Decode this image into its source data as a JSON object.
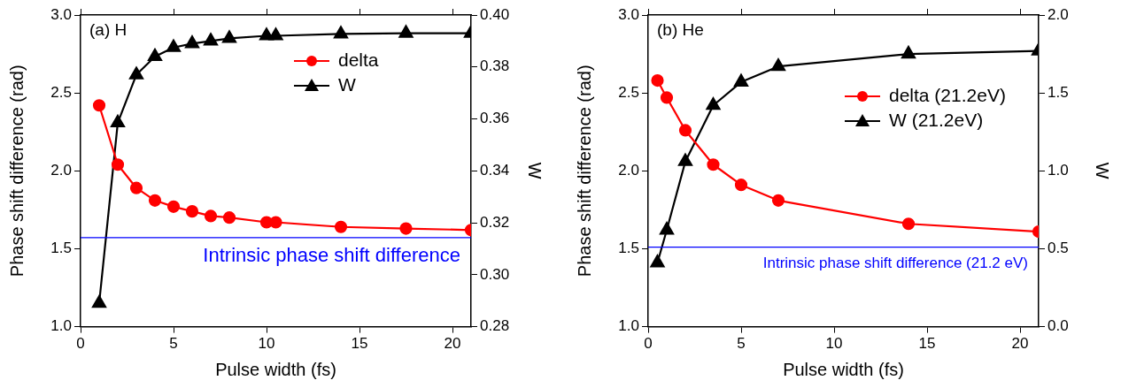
{
  "chart_data": [
    {
      "type": "line",
      "xlabel": "Pulse width (fs)",
      "ylabel": "Phase shift difference (rad)",
      "y2label": "W",
      "annotations": [
        "(a) H"
      ],
      "xlim": [
        0,
        21
      ],
      "xticks": [
        0,
        5,
        10,
        15,
        20
      ],
      "ylim": [
        1,
        3
      ],
      "yticks": [
        {
          "value": 1,
          "label": "1.0"
        },
        {
          "value": 1.5,
          "label": "1.5"
        },
        {
          "value": 2,
          "label": "2.0"
        },
        {
          "value": 2.5,
          "label": "2.5"
        },
        {
          "value": 3,
          "label": "3.0"
        }
      ],
      "y2lim": [
        0.28,
        0.4
      ],
      "y2ticks": [
        {
          "value": 0.28,
          "label": "0.28"
        },
        {
          "value": 0.3,
          "label": "0.30"
        },
        {
          "value": 0.32,
          "label": "0.32"
        },
        {
          "value": 0.34,
          "label": "0.34"
        },
        {
          "value": 0.36,
          "label": "0.36"
        },
        {
          "value": 0.38,
          "label": "0.38"
        },
        {
          "value": 0.4,
          "label": "0.40"
        }
      ],
      "legend": "top right",
      "grid": false,
      "ref_lines": [
        {
          "axis": "y",
          "value": 1.571,
          "label": "Intrinsic phase shift difference",
          "color": "#0000ff"
        }
      ],
      "series": [
        {
          "name": "delta",
          "color": "#ff0000",
          "marker": "circle",
          "x": [
            1,
            2,
            3,
            4,
            5,
            6,
            7,
            8,
            10,
            10.5,
            14,
            17.5,
            21
          ],
          "values": [
            2.42,
            2.04,
            1.89,
            1.81,
            1.77,
            1.74,
            1.71,
            1.7,
            1.67,
            1.67,
            1.64,
            1.63,
            1.62
          ]
        },
        {
          "name": "W",
          "color": "#000000",
          "marker": "triangle",
          "axis": "y2",
          "x": [
            1,
            2,
            3,
            4,
            5,
            6,
            7,
            8,
            10,
            10.5,
            14,
            17.5,
            21
          ],
          "values": [
            0.289,
            0.3585,
            0.377,
            0.384,
            0.3875,
            0.389,
            0.39,
            0.391,
            0.392,
            0.392,
            0.3927,
            0.393,
            0.393
          ]
        }
      ]
    },
    {
      "type": "line",
      "xlabel": "Pulse width (fs)",
      "ylabel": "Phase shift difference (rad)",
      "y2label": "W",
      "annotations": [
        "(b) He"
      ],
      "xlim": [
        0,
        21
      ],
      "xticks": [
        0,
        5,
        10,
        15,
        20
      ],
      "ylim": [
        1,
        3
      ],
      "yticks": [
        {
          "value": 1,
          "label": "1.0"
        },
        {
          "value": 1.5,
          "label": "1.5"
        },
        {
          "value": 2,
          "label": "2.0"
        },
        {
          "value": 2.5,
          "label": "2.5"
        },
        {
          "value": 3,
          "label": "3.0"
        }
      ],
      "y2lim": [
        0,
        2
      ],
      "y2ticks": [
        {
          "value": 0,
          "label": "0.0"
        },
        {
          "value": 0.5,
          "label": "0.5"
        },
        {
          "value": 1,
          "label": "1.0"
        },
        {
          "value": 1.5,
          "label": "1.5"
        },
        {
          "value": 2,
          "label": "2.0"
        }
      ],
      "legend": "top right",
      "grid": false,
      "ref_lines": [
        {
          "axis": "y",
          "value": 1.51,
          "label": "Intrinsic phase shift difference (21.2 eV)",
          "color": "#0000ff"
        }
      ],
      "series": [
        {
          "name": "delta (21.2eV)",
          "color": "#ff0000",
          "marker": "circle",
          "x": [
            0.5,
            1,
            2,
            3.5,
            5,
            7,
            14,
            21
          ],
          "values": [
            2.58,
            2.47,
            2.26,
            2.04,
            1.91,
            1.81,
            1.66,
            1.61
          ]
        },
        {
          "name": "W (21.2eV)",
          "color": "#000000",
          "marker": "triangle",
          "axis": "y2",
          "x": [
            0.5,
            1,
            2,
            3.5,
            5,
            7,
            14,
            21
          ],
          "values": [
            0.41,
            0.62,
            1.06,
            1.42,
            1.57,
            1.67,
            1.75,
            1.77
          ]
        }
      ]
    }
  ]
}
